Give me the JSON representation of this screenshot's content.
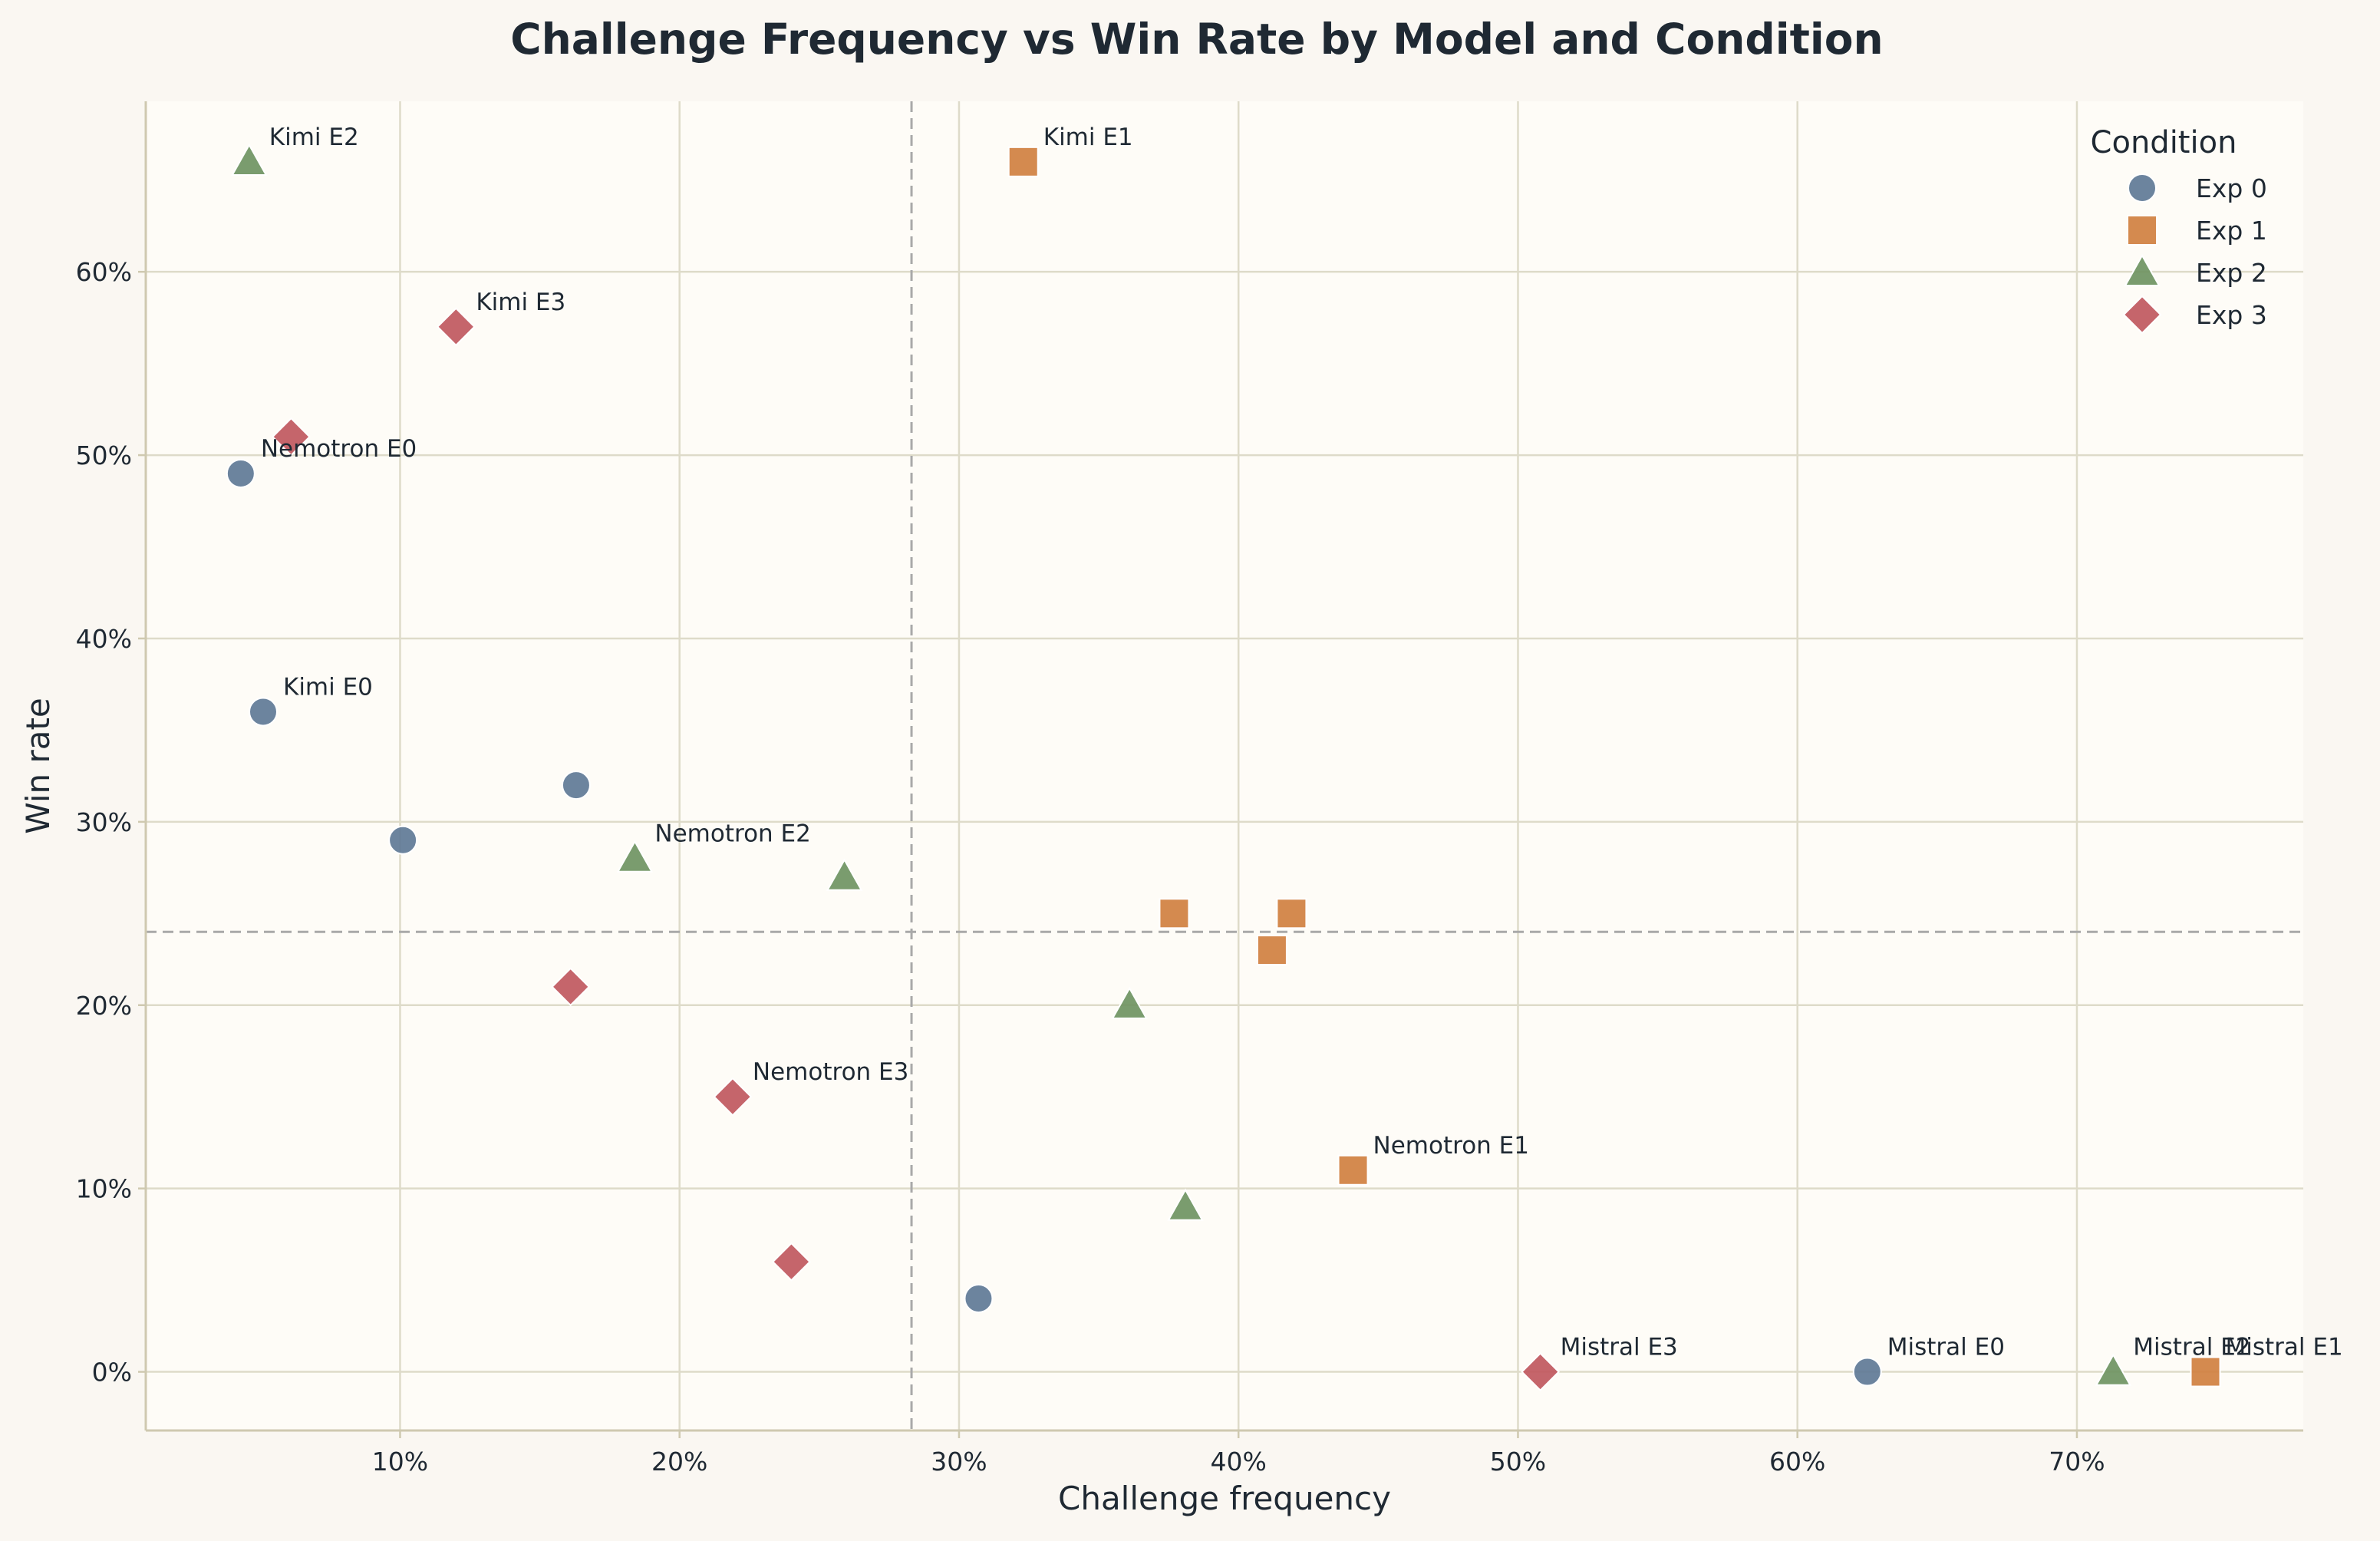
{
  "chart_data": {
    "type": "scatter",
    "title": "Challenge Frequency vs Win Rate by Model and Condition",
    "xlabel": "Challenge frequency",
    "ylabel": "Win rate",
    "xlim": [
      0.009,
      0.781
    ],
    "ylim": [
      -0.032,
      0.693
    ],
    "x_ticks": [
      {
        "value": 0.1,
        "label": "10%"
      },
      {
        "value": 0.2,
        "label": "20%"
      },
      {
        "value": 0.3,
        "label": "30%"
      },
      {
        "value": 0.4,
        "label": "40%"
      },
      {
        "value": 0.5,
        "label": "50%"
      },
      {
        "value": 0.6,
        "label": "60%"
      },
      {
        "value": 0.7,
        "label": "70%"
      }
    ],
    "y_ticks": [
      {
        "value": 0.0,
        "label": "0%"
      },
      {
        "value": 0.1,
        "label": "10%"
      },
      {
        "value": 0.2,
        "label": "20%"
      },
      {
        "value": 0.3,
        "label": "30%"
      },
      {
        "value": 0.4,
        "label": "40%"
      },
      {
        "value": 0.5,
        "label": "50%"
      },
      {
        "value": 0.6,
        "label": "60%"
      }
    ],
    "reference_lines": {
      "x": 0.283,
      "y": 0.24
    },
    "grid": true,
    "legend": {
      "title": "Condition",
      "placement": "top-right"
    },
    "series": [
      {
        "name": "Exp 0",
        "marker": "circle",
        "color": "#5f7a96",
        "points": [
          {
            "x": 0.043,
            "y": 0.49,
            "label": "Nemotron E0"
          },
          {
            "x": 0.051,
            "y": 0.36,
            "label": "Kimi E0"
          },
          {
            "x": 0.101,
            "y": 0.29,
            "label": ""
          },
          {
            "x": 0.163,
            "y": 0.32,
            "label": ""
          },
          {
            "x": 0.307,
            "y": 0.04,
            "label": ""
          },
          {
            "x": 0.625,
            "y": 0.0,
            "label": "Mistral E0"
          }
        ]
      },
      {
        "name": "Exp 1",
        "marker": "square",
        "color": "#d08040",
        "points": [
          {
            "x": 0.323,
            "y": 0.66,
            "label": "Kimi E1"
          },
          {
            "x": 0.377,
            "y": 0.25,
            "label": ""
          },
          {
            "x": 0.419,
            "y": 0.25,
            "label": ""
          },
          {
            "x": 0.412,
            "y": 0.23,
            "label": ""
          },
          {
            "x": 0.441,
            "y": 0.11,
            "label": "Nemotron E1"
          },
          {
            "x": 0.746,
            "y": 0.0,
            "label": "Mistral E1"
          }
        ]
      },
      {
        "name": "Exp 2",
        "marker": "triangle",
        "color": "#6f9462",
        "points": [
          {
            "x": 0.046,
            "y": 0.66,
            "label": "Kimi E2"
          },
          {
            "x": 0.184,
            "y": 0.28,
            "label": "Nemotron E2"
          },
          {
            "x": 0.259,
            "y": 0.27,
            "label": ""
          },
          {
            "x": 0.361,
            "y": 0.2,
            "label": ""
          },
          {
            "x": 0.381,
            "y": 0.09,
            "label": ""
          },
          {
            "x": 0.713,
            "y": 0.0,
            "label": "Mistral E2"
          }
        ]
      },
      {
        "name": "Exp 3",
        "marker": "diamond",
        "color": "#c0585e",
        "points": [
          {
            "x": 0.12,
            "y": 0.57,
            "label": "Kimi E3"
          },
          {
            "x": 0.061,
            "y": 0.51,
            "label": ""
          },
          {
            "x": 0.161,
            "y": 0.21,
            "label": ""
          },
          {
            "x": 0.219,
            "y": 0.15,
            "label": "Nemotron E3"
          },
          {
            "x": 0.24,
            "y": 0.06,
            "label": ""
          },
          {
            "x": 0.508,
            "y": 0.0,
            "label": "Mistral E3"
          }
        ]
      }
    ]
  }
}
